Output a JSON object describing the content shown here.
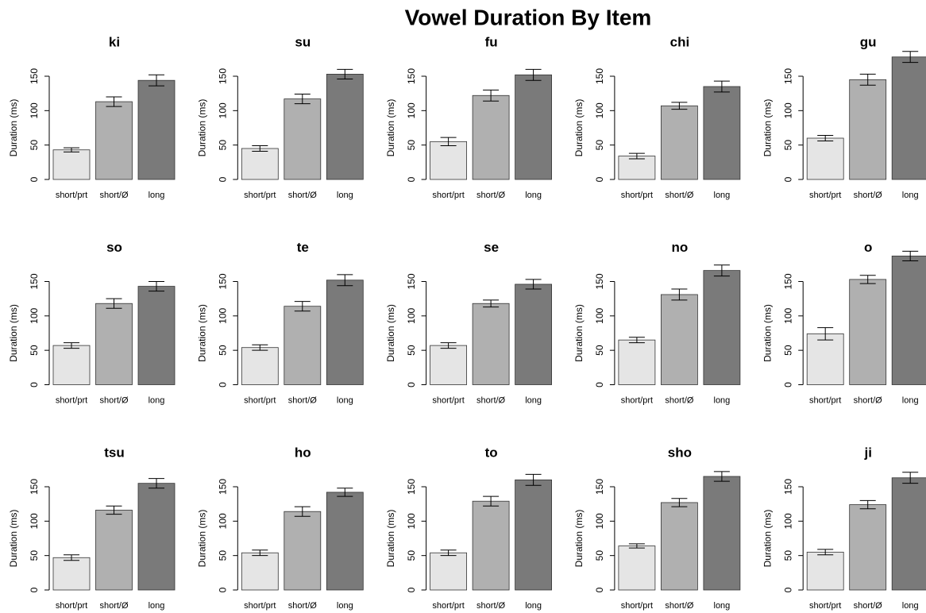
{
  "title": "Vowel Duration By Item",
  "chart_data": [
    {
      "type": "bar",
      "title": "ki",
      "ylabel": "Duration (ms)",
      "categories": [
        "short/prt",
        "short/Ø",
        "long"
      ],
      "values": [
        43,
        113,
        144
      ],
      "errors": [
        3,
        7,
        8
      ],
      "colors": [
        "#e5e5e5",
        "#b0b0b0",
        "#7a7a7a"
      ],
      "ylim": [
        0,
        195
      ],
      "yticks": [
        0,
        50,
        100,
        150
      ]
    },
    {
      "type": "bar",
      "title": "su",
      "ylabel": "Duration (ms)",
      "categories": [
        "short/prt",
        "short/Ø",
        "long"
      ],
      "values": [
        45,
        117,
        153
      ],
      "errors": [
        4,
        7,
        7
      ],
      "colors": [
        "#e5e5e5",
        "#b0b0b0",
        "#7a7a7a"
      ],
      "ylim": [
        0,
        195
      ],
      "yticks": [
        0,
        50,
        100,
        150
      ]
    },
    {
      "type": "bar",
      "title": "fu",
      "ylabel": "Duration (ms)",
      "categories": [
        "short/prt",
        "short/Ø",
        "long"
      ],
      "values": [
        55,
        122,
        152
      ],
      "errors": [
        6,
        8,
        8
      ],
      "colors": [
        "#e5e5e5",
        "#b0b0b0",
        "#7a7a7a"
      ],
      "ylim": [
        0,
        195
      ],
      "yticks": [
        0,
        50,
        100,
        150
      ]
    },
    {
      "type": "bar",
      "title": "chi",
      "ylabel": "Duration (ms)",
      "categories": [
        "short/prt",
        "short/Ø",
        "long"
      ],
      "values": [
        34,
        107,
        135
      ],
      "errors": [
        4,
        5,
        8
      ],
      "colors": [
        "#e5e5e5",
        "#b0b0b0",
        "#7a7a7a"
      ],
      "ylim": [
        0,
        195
      ],
      "yticks": [
        0,
        50,
        100,
        150
      ]
    },
    {
      "type": "bar",
      "title": "gu",
      "ylabel": "Duration (ms)",
      "categories": [
        "short/prt",
        "short/Ø",
        "long"
      ],
      "values": [
        60,
        145,
        178
      ],
      "errors": [
        4,
        8,
        8
      ],
      "colors": [
        "#e5e5e5",
        "#b0b0b0",
        "#7a7a7a"
      ],
      "ylim": [
        0,
        195
      ],
      "yticks": [
        0,
        50,
        100,
        150
      ]
    },
    {
      "type": "bar",
      "title": "so",
      "ylabel": "Duration (ms)",
      "categories": [
        "short/prt",
        "short/Ø",
        "long"
      ],
      "values": [
        57,
        118,
        143
      ],
      "errors": [
        4,
        7,
        7
      ],
      "colors": [
        "#e5e5e5",
        "#b0b0b0",
        "#7a7a7a"
      ],
      "ylim": [
        0,
        195
      ],
      "yticks": [
        0,
        50,
        100,
        150
      ]
    },
    {
      "type": "bar",
      "title": "te",
      "ylabel": "Duration (ms)",
      "categories": [
        "short/prt",
        "short/Ø",
        "long"
      ],
      "values": [
        54,
        114,
        152
      ],
      "errors": [
        4,
        7,
        8
      ],
      "colors": [
        "#e5e5e5",
        "#b0b0b0",
        "#7a7a7a"
      ],
      "ylim": [
        0,
        195
      ],
      "yticks": [
        0,
        50,
        100,
        150
      ]
    },
    {
      "type": "bar",
      "title": "se",
      "ylabel": "Duration (ms)",
      "categories": [
        "short/prt",
        "short/Ø",
        "long"
      ],
      "values": [
        57,
        118,
        146
      ],
      "errors": [
        4,
        5,
        7
      ],
      "colors": [
        "#e5e5e5",
        "#b0b0b0",
        "#7a7a7a"
      ],
      "ylim": [
        0,
        195
      ],
      "yticks": [
        0,
        50,
        100,
        150
      ]
    },
    {
      "type": "bar",
      "title": "no",
      "ylabel": "Duration (ms)",
      "categories": [
        "short/prt",
        "short/Ø",
        "long"
      ],
      "values": [
        65,
        131,
        166
      ],
      "errors": [
        4,
        8,
        8
      ],
      "colors": [
        "#e5e5e5",
        "#b0b0b0",
        "#7a7a7a"
      ],
      "ylim": [
        0,
        195
      ],
      "yticks": [
        0,
        50,
        100,
        150
      ]
    },
    {
      "type": "bar",
      "title": "o",
      "ylabel": "Duration (ms)",
      "categories": [
        "short/prt",
        "short/Ø",
        "long"
      ],
      "values": [
        74,
        153,
        187
      ],
      "errors": [
        9,
        6,
        7
      ],
      "colors": [
        "#e5e5e5",
        "#b0b0b0",
        "#7a7a7a"
      ],
      "ylim": [
        0,
        195
      ],
      "yticks": [
        0,
        50,
        100,
        150
      ]
    },
    {
      "type": "bar",
      "title": "tsu",
      "ylabel": "Duration (ms)",
      "categories": [
        "short/prt",
        "short/Ø",
        "long"
      ],
      "values": [
        47,
        116,
        155
      ],
      "errors": [
        4,
        6,
        7
      ],
      "colors": [
        "#e5e5e5",
        "#b0b0b0",
        "#7a7a7a"
      ],
      "ylim": [
        0,
        195
      ],
      "yticks": [
        0,
        50,
        100,
        150
      ]
    },
    {
      "type": "bar",
      "title": "ho",
      "ylabel": "Duration (ms)",
      "categories": [
        "short/prt",
        "short/Ø",
        "long"
      ],
      "values": [
        54,
        114,
        142
      ],
      "errors": [
        4,
        7,
        6
      ],
      "colors": [
        "#e5e5e5",
        "#b0b0b0",
        "#7a7a7a"
      ],
      "ylim": [
        0,
        195
      ],
      "yticks": [
        0,
        50,
        100,
        150
      ]
    },
    {
      "type": "bar",
      "title": "to",
      "ylabel": "Duration (ms)",
      "categories": [
        "short/prt",
        "short/Ø",
        "long"
      ],
      "values": [
        54,
        129,
        160
      ],
      "errors": [
        4,
        7,
        8
      ],
      "colors": [
        "#e5e5e5",
        "#b0b0b0",
        "#7a7a7a"
      ],
      "ylim": [
        0,
        195
      ],
      "yticks": [
        0,
        50,
        100,
        150
      ]
    },
    {
      "type": "bar",
      "title": "sho",
      "ylabel": "Duration (ms)",
      "categories": [
        "short/prt",
        "short/Ø",
        "long"
      ],
      "values": [
        64,
        127,
        165
      ],
      "errors": [
        3,
        6,
        7
      ],
      "colors": [
        "#e5e5e5",
        "#b0b0b0",
        "#7a7a7a"
      ],
      "ylim": [
        0,
        195
      ],
      "yticks": [
        0,
        50,
        100,
        150
      ]
    },
    {
      "type": "bar",
      "title": "ji",
      "ylabel": "Duration (ms)",
      "categories": [
        "short/prt",
        "short/Ø",
        "long"
      ],
      "values": [
        55,
        124,
        163
      ],
      "errors": [
        4,
        6,
        8
      ],
      "colors": [
        "#e5e5e5",
        "#b0b0b0",
        "#7a7a7a"
      ],
      "ylim": [
        0,
        195
      ],
      "yticks": [
        0,
        50,
        100,
        150
      ]
    }
  ]
}
